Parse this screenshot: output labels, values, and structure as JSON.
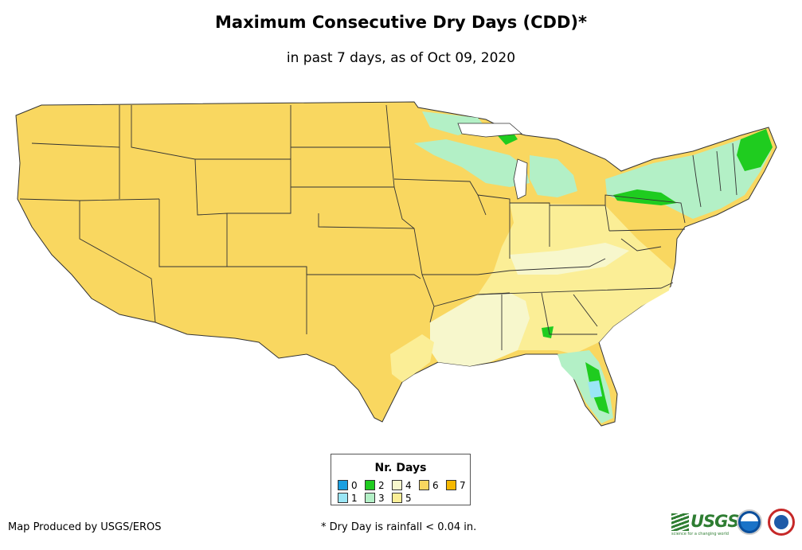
{
  "title": "Maximum Consecutive Dry Days (CDD)*",
  "subtitle": "in past 7 days, as of Oct 09, 2020",
  "legend": {
    "title": "Nr. Days",
    "items": [
      {
        "label": "0",
        "color": "#1a9fe0"
      },
      {
        "label": "1",
        "color": "#9ae6f5"
      },
      {
        "label": "2",
        "color": "#1fcc1f"
      },
      {
        "label": "3",
        "color": "#b3f0c6"
      },
      {
        "label": "4",
        "color": "#f7f7cc"
      },
      {
        "label": "5",
        "color": "#fbee96"
      },
      {
        "label": "6",
        "color": "#f9d760"
      },
      {
        "label": "7",
        "color": "#f5b800"
      }
    ]
  },
  "credit": "Map Produced by USGS/EROS",
  "footnote": "* Dry Day is rainfall < 0.04 in.",
  "logos": {
    "usgs": "USGS",
    "usgs_tagline": "science for a changing world",
    "noaa": "noaa-logo",
    "nws": "nws-logo"
  }
}
